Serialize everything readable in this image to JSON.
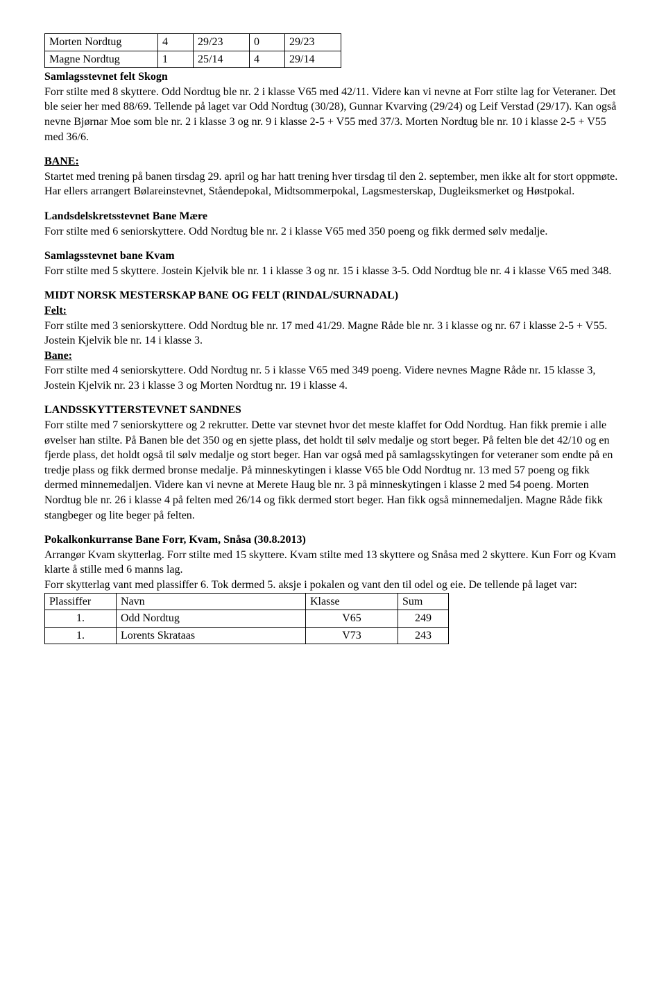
{
  "top_table": {
    "rows": [
      [
        "Morten Nordtug",
        "4",
        "29/23",
        "0",
        "29/23"
      ],
      [
        "Magne Nordtug",
        "1",
        "25/14",
        "4",
        "29/14"
      ]
    ],
    "col_widths": [
      "150px",
      "38px",
      "68px",
      "38px",
      "68px"
    ]
  },
  "samlag_felt": {
    "title": "Samlagsstevnet felt  Skogn",
    "body": "Forr stilte med 8 skyttere. Odd Nordtug ble nr. 2 i klasse V65 med 42/11. Videre kan vi nevne at Forr stilte lag for Veteraner. Det ble seier her med 88/69. Tellende på laget var Odd Nordtug (30/28), Gunnar Kvarving (29/24) og Leif Verstad (29/17). Kan også nevne Bjørnar Moe som ble nr. 2 i klasse 3 og nr. 9 i klasse 2-5 + V55 med 37/3. Morten Nordtug ble nr. 10 i klasse 2-5 + V55 med 36/6."
  },
  "bane": {
    "heading": "BANE:",
    "body": "Startet med trening på banen tirsdag 29. april og har hatt trening hver tirsdag til den 2. september, men ikke alt for stort oppmøte. Har ellers arrangert Bølareinstevnet, Ståendepokal, Midtsommerpokal, Lagsmesterskap, Dugleiksmerket og Høstpokal."
  },
  "landsdel": {
    "title": "Landsdelskretsstevnet Bane Mære",
    "body": "Forr stilte med 6 seniorskyttere. Odd Nordtug ble nr. 2 i klasse V65 med 350 poeng og fikk dermed sølv medalje."
  },
  "samlag_bane": {
    "title": "Samlagsstevnet bane Kvam",
    "body": "Forr stilte med 5 skyttere. Jostein Kjelvik ble nr. 1 i klasse 3 og nr. 15 i klasse 3-5. Odd Nordtug ble nr. 4 i klasse V65 med 348."
  },
  "midtnorsk": {
    "title": "MIDT NORSK MESTERSKAP BANE OG FELT (RINDAL/SURNADAL)",
    "felt_heading": "Felt:",
    "felt_body": "Forr stilte med 3 seniorskyttere. Odd Nordtug ble nr. 17 med 41/29. Magne Råde ble nr. 3 i klasse og nr. 67 i klasse 2-5 + V55. Jostein Kjelvik ble nr. 14 i klasse 3.",
    "bane_heading": "Bane:",
    "bane_body": "Forr stilte med 4 seniorskyttere. Odd Nordtug nr. 5 i klasse V65 med 349 poeng. Videre nevnes Magne Råde nr. 15 klasse 3, Jostein Kjelvik nr. 23 i klasse 3 og Morten Nordtug nr. 19 i klasse 4."
  },
  "landsskytter": {
    "title": "LANDSSKYTTERSTEVNET SANDNES",
    "body": "Forr stilte med 7 seniorskyttere og 2 rekrutter. Dette var stevnet hvor det meste klaffet for Odd Nordtug. Han fikk premie i alle øvelser han stilte. På Banen ble det 350 og en sjette plass, det holdt til sølv medalje og stort beger. På felten ble det 42/10 og en fjerde plass, det holdt også til sølv medalje og stort beger. Han var også med på samlagsskytingen for veteraner som endte på en tredje plass og fikk dermed bronse medalje. På minneskytingen i klasse V65 ble Odd Nordtug nr. 13 med 57 poeng og fikk dermed minnemedaljen. Videre kan vi nevne at Merete Haug ble nr. 3 på minneskytingen i klasse 2 med 54 poeng. Morten Nordtug ble nr. 26 i klasse 4 på felten med 26/14 og fikk dermed stort beger. Han fikk også minnemedaljen. Magne Råde fikk stangbeger og lite beger på felten."
  },
  "pokal": {
    "title": "Pokalkonkurranse Bane Forr, Kvam, Snåsa (30.8.2013)",
    "body": "Arrangør Kvam skytterlag. Forr stilte med 15 skyttere. Kvam stilte med 13 skyttere og Snåsa med 2 skyttere. Kun Forr og Kvam klarte å stille med 6 manns lag.",
    "body2": "Forr skytterlag vant med plassiffer 6. Tok dermed 5. aksje i pokalen og vant den til odel og eie. De tellende på laget var:",
    "table": {
      "header": [
        "Plassiffer",
        "Navn",
        "Klasse",
        "Sum"
      ],
      "rows": [
        [
          "1.",
          "Odd Nordtug",
          "V65",
          "249"
        ],
        [
          "1.",
          "Lorents Skrataas",
          "V73",
          "243"
        ]
      ]
    }
  }
}
